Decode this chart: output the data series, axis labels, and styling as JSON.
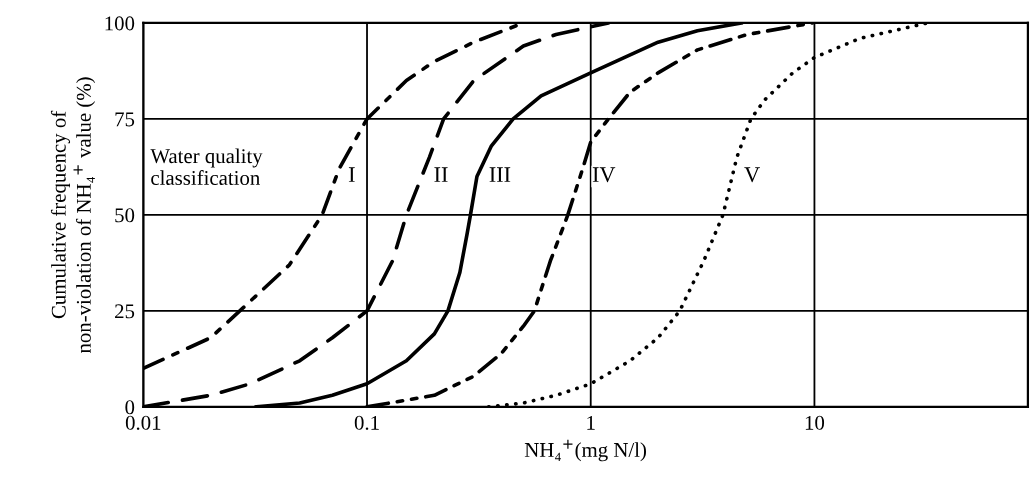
{
  "chart_data": {
    "type": "line",
    "xlabel": "NH₄$^{+}$(mg N/l)",
    "ylabel": "Cumulative frequency of\nnon-violation of NH₄$^{+}$ value (%)",
    "annotations": [
      "Water quality\nclassification"
    ],
    "log": "x",
    "xlim": [
      0.01,
      90
    ],
    "xticks": [
      0.01,
      0.1,
      1,
      10
    ],
    "ylim": [
      0,
      100
    ],
    "yticks": [
      0,
      25,
      50,
      75,
      100
    ],
    "grid": true,
    "legend": false,
    "marker": "none",
    "series": [
      {
        "name": "I",
        "color": "#000000",
        "line_style": "dashdot",
        "x": [
          0.01,
          0.02,
          0.027,
          0.045,
          0.063,
          0.075,
          0.1,
          0.15,
          0.2,
          0.3,
          0.5
        ],
        "values": [
          10,
          18,
          25,
          37,
          50,
          62,
          75,
          85,
          90,
          95,
          100
        ]
      },
      {
        "name": "II",
        "color": "#000000",
        "line_style": "dashed",
        "x": [
          0.01,
          0.02,
          0.03,
          0.05,
          0.07,
          0.1,
          0.13,
          0.15,
          0.19,
          0.22,
          0.3,
          0.5,
          0.7,
          1,
          1.2
        ],
        "values": [
          0,
          3,
          6,
          12,
          18,
          25,
          38,
          50,
          65,
          75,
          85,
          94,
          97,
          99,
          100
        ]
      },
      {
        "name": "III",
        "color": "#000000",
        "line_style": "solid",
        "x": [
          0.032,
          0.05,
          0.07,
          0.1,
          0.15,
          0.2,
          0.23,
          0.26,
          0.28,
          0.29,
          0.31,
          0.36,
          0.45,
          0.6,
          1,
          2,
          3,
          4.7
        ],
        "values": [
          0,
          1,
          3,
          6,
          12,
          19,
          25,
          35,
          45,
          50,
          60,
          68,
          75,
          81,
          87,
          95,
          98,
          100
        ]
      },
      {
        "name": "IV",
        "color": "#000000",
        "line_style": "dashdotdot",
        "x": [
          0.1,
          0.2,
          0.3,
          0.4,
          0.5,
          0.56,
          0.66,
          0.79,
          0.92,
          1,
          1.2,
          1.5,
          2,
          3,
          5,
          9.8
        ],
        "values": [
          0,
          3,
          8,
          14,
          21,
          25,
          38,
          50,
          62,
          69,
          75,
          82,
          87,
          93,
          97,
          100
        ]
      },
      {
        "name": "V",
        "color": "#000000",
        "line_style": "dotted",
        "x": [
          0.35,
          0.5,
          0.7,
          1,
          1.5,
          2,
          2.5,
          3.2,
          3.9,
          4.5,
          5.2,
          6,
          8,
          10,
          16,
          32
        ],
        "values": [
          0,
          1,
          3,
          6,
          12,
          18,
          25,
          38,
          50,
          65,
          75,
          80,
          87,
          91,
          96,
          100
        ]
      }
    ]
  }
}
